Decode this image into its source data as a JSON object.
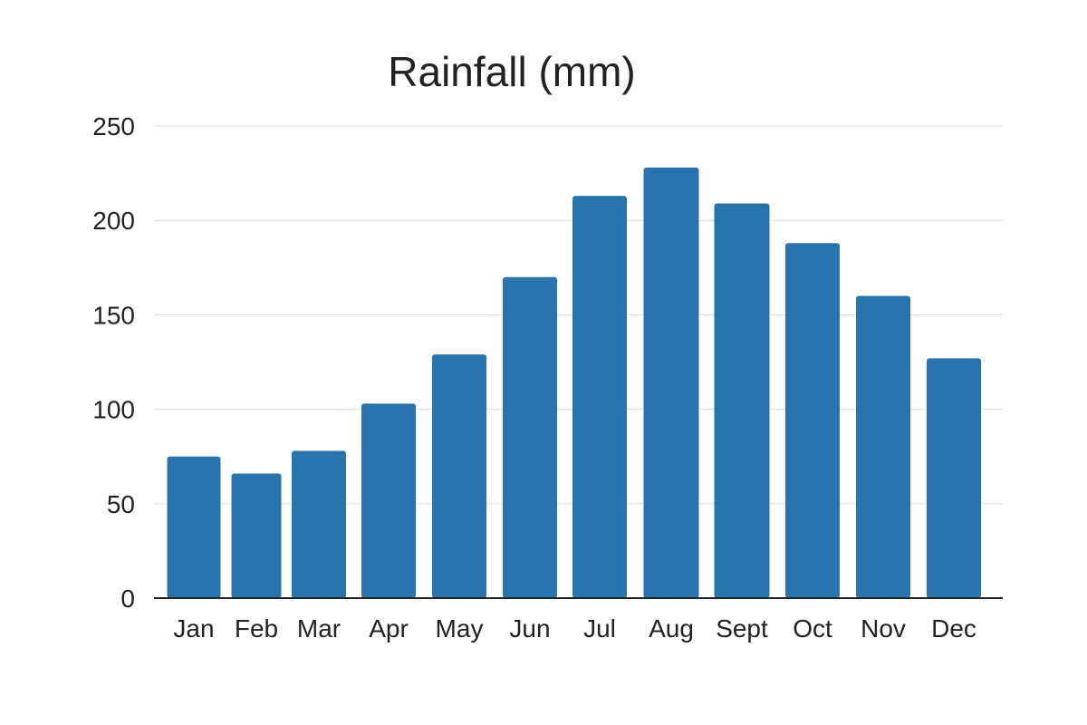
{
  "chart_data": {
    "type": "bar",
    "title": "Rainfall (mm)",
    "xlabel": "",
    "ylabel": "",
    "categories": [
      "Jan",
      "Feb",
      "Mar",
      "Apr",
      "May",
      "Jun",
      "Jul",
      "Aug",
      "Sept",
      "Oct",
      "Nov",
      "Dec"
    ],
    "values": [
      75,
      66,
      78,
      103,
      129,
      170,
      213,
      228,
      209,
      188,
      160,
      127
    ],
    "ylim": [
      0,
      250
    ],
    "yticks": [
      0,
      50,
      100,
      150,
      200,
      250
    ],
    "grid": true,
    "legend": "none",
    "bar_color": "#2874ae"
  }
}
